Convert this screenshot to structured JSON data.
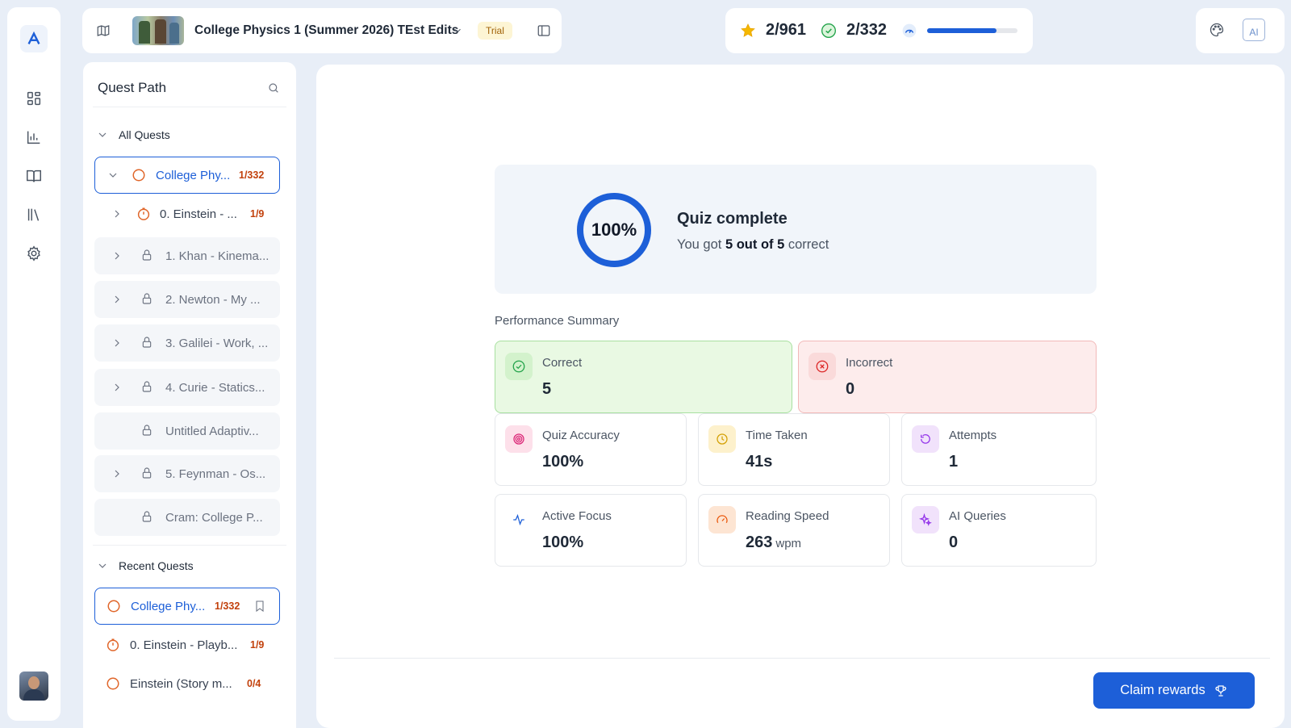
{
  "header": {
    "course_title": "College Physics 1 (Summer 2026) TEst Edits",
    "trial_badge": "Trial"
  },
  "stats": {
    "stars": "2/961",
    "checks": "2/332",
    "progress_fraction": 0.77,
    "accent": "#1d5fd8"
  },
  "top_right": {
    "ai_label": "AI"
  },
  "quest_path": {
    "title": "Quest Path",
    "all_quests_label": "All Quests",
    "recent_quests_label": "Recent Quests",
    "all_quests": [
      {
        "label": "College Phy...",
        "count": "1/332",
        "state": "active"
      },
      {
        "label": "0. Einstein - ...",
        "count": "1/9",
        "state": "in-progress"
      },
      {
        "label": "1. Khan - Kinema...",
        "count": "",
        "state": "locked"
      },
      {
        "label": "2. Newton - My ...",
        "count": "",
        "state": "locked"
      },
      {
        "label": "3. Galilei - Work, ...",
        "count": "",
        "state": "locked"
      },
      {
        "label": "4. Curie - Statics...",
        "count": "",
        "state": "locked"
      },
      {
        "label": "Untitled Adaptiv...",
        "count": "",
        "state": "locked"
      },
      {
        "label": "5. Feynman - Os...",
        "count": "",
        "state": "locked"
      },
      {
        "label": "Cram: College P...",
        "count": "",
        "state": "locked"
      }
    ],
    "recent_quests": [
      {
        "label": "College Phy...",
        "count": "1/332",
        "state": "active"
      },
      {
        "label": "0. Einstein - Playb...",
        "count": "1/9",
        "state": "in-progress"
      },
      {
        "label": "Einstein (Story m...",
        "count": "0/4",
        "state": "not-started"
      }
    ]
  },
  "result": {
    "percent": "100%",
    "percent_value": 1.0,
    "title": "Quiz complete",
    "sub_prefix": "You got ",
    "sub_score": "5 out of 5",
    "sub_suffix": " correct"
  },
  "performance": {
    "title": "Performance Summary",
    "correct": {
      "label": "Correct",
      "value": "5"
    },
    "incorrect": {
      "label": "Incorrect",
      "value": "0"
    },
    "metrics": [
      {
        "label": "Quiz Accuracy",
        "value": "100%",
        "unit": ""
      },
      {
        "label": "Time Taken",
        "value": "41s",
        "unit": ""
      },
      {
        "label": "Attempts",
        "value": "1",
        "unit": ""
      },
      {
        "label": "Active Focus",
        "value": "100%",
        "unit": ""
      },
      {
        "label": "Reading Speed",
        "value": "263",
        "unit": "wpm"
      },
      {
        "label": "AI Queries",
        "value": "0",
        "unit": ""
      }
    ]
  },
  "footer": {
    "claim_label": "Claim rewards"
  }
}
